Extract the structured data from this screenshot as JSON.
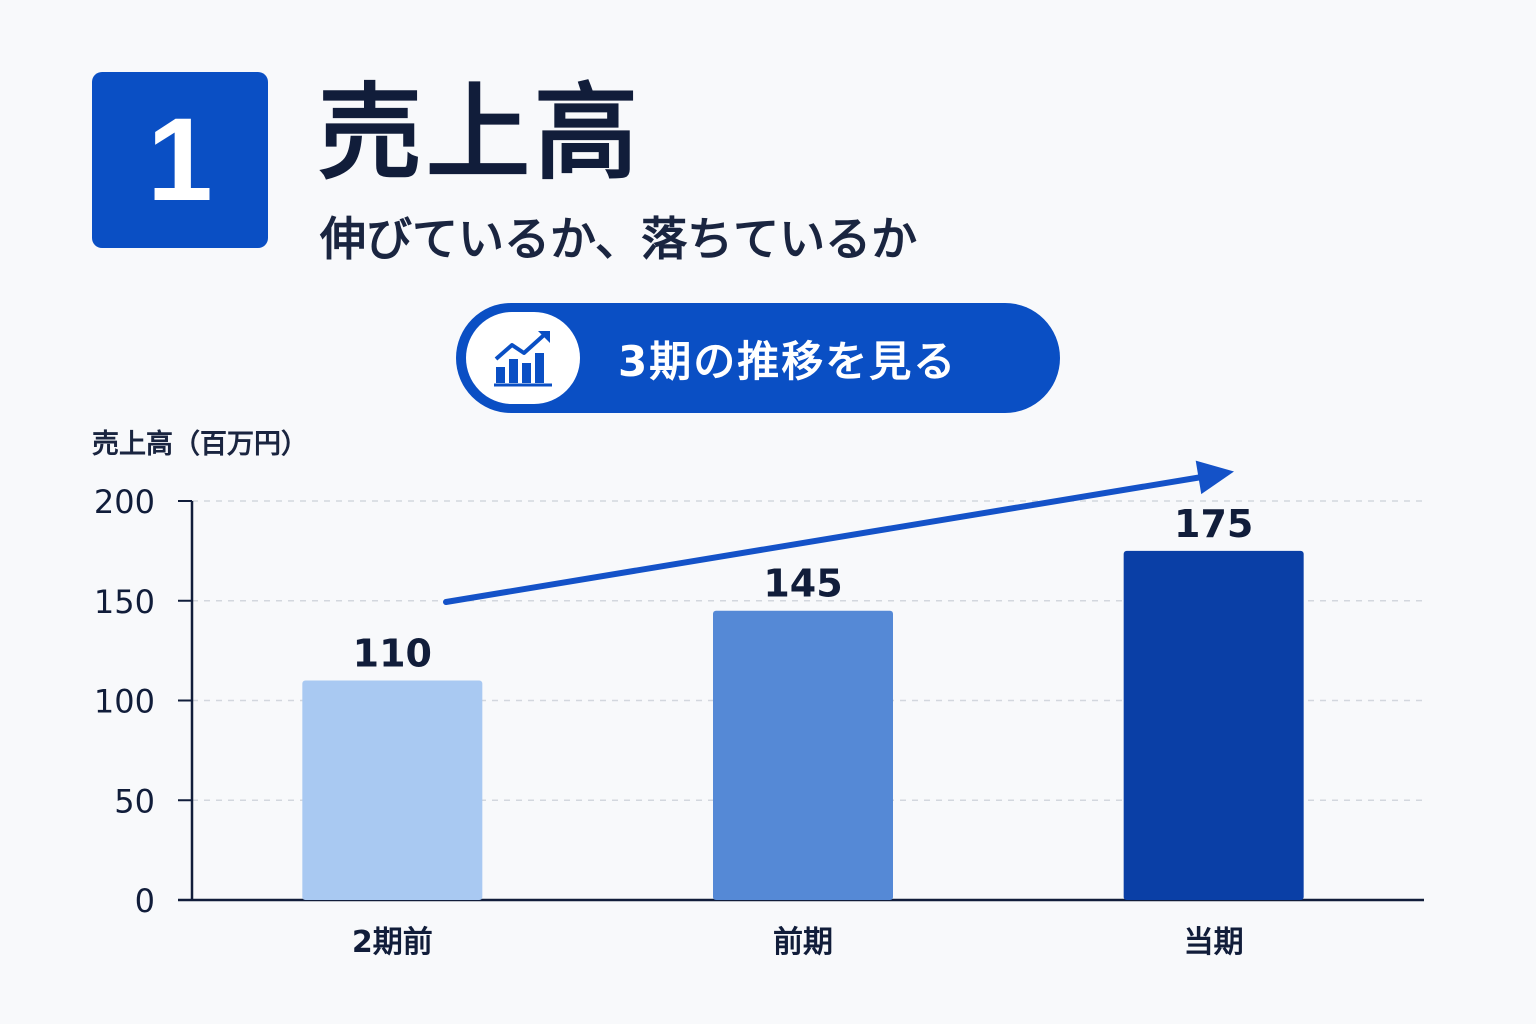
{
  "header": {
    "badge_number": "1",
    "title": "売上高",
    "subtitle": "伸びているか、落ちているか"
  },
  "pill": {
    "icon": "bar-chart-trend-icon",
    "label": "3期の推移を見る"
  },
  "colors": {
    "accent": "#0a4fc4",
    "bar_colors": [
      "#a9c9f2",
      "#5589d6",
      "#0a3fa6"
    ],
    "arrow": "#1452c8",
    "text": "#111d3a"
  },
  "chart_data": {
    "type": "bar",
    "title": "",
    "ylabel": "売上高（百万円）",
    "xlabel": "",
    "categories": [
      "2期前",
      "前期",
      "当期"
    ],
    "values": [
      110,
      145,
      175
    ],
    "value_labels": [
      "110",
      "145",
      "175"
    ],
    "ylim": [
      0,
      200
    ],
    "yticks": [
      0,
      50,
      100,
      150,
      200
    ],
    "grid": true,
    "trend_arrow": true
  }
}
